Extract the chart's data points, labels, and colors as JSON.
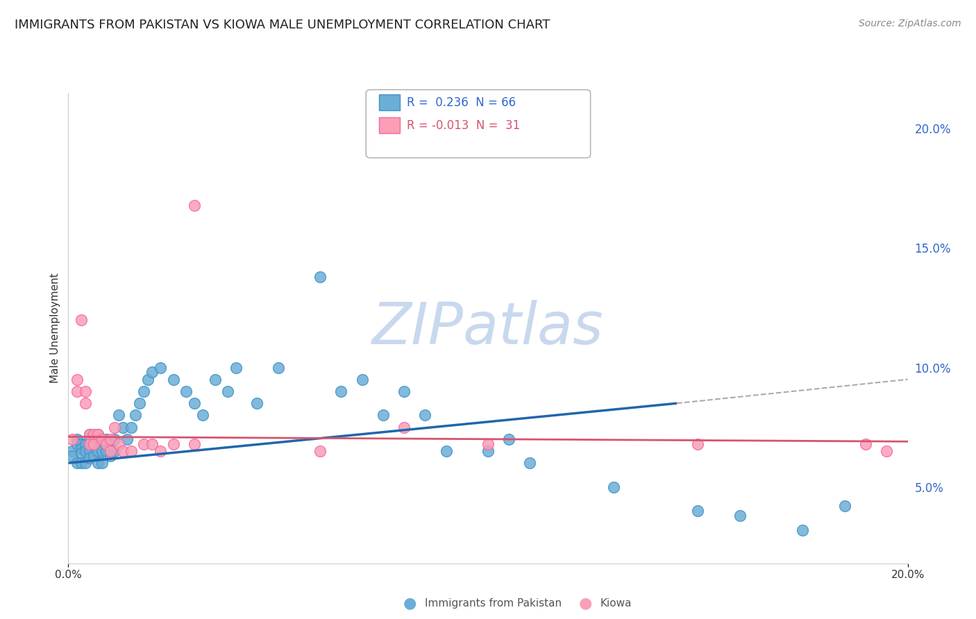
{
  "title": "IMMIGRANTS FROM PAKISTAN VS KIOWA MALE UNEMPLOYMENT CORRELATION CHART",
  "source_text": "Source: ZipAtlas.com",
  "ylabel": "Male Unemployment",
  "xlim": [
    0.0,
    0.2
  ],
  "ylim": [
    0.018,
    0.215
  ],
  "yticks_right": [
    0.05,
    0.1,
    0.15,
    0.2
  ],
  "ytick_labels_right": [
    "5.0%",
    "10.0%",
    "15.0%",
    "20.0%"
  ],
  "xticks": [
    0.0,
    0.2
  ],
  "xtick_labels": [
    "0.0%",
    "20.0%"
  ],
  "legend_label1": "R =  0.236  N = 66",
  "legend_label2": "R = -0.013  N =  31",
  "legend_color1": "#6baed6",
  "legend_color2": "#fa9fb5",
  "watermark_text": "ZIPatlas",
  "watermark_color": "#c8d8ee",
  "series1_color": "#6baed6",
  "series1_edge": "#4292c6",
  "series2_color": "#fa9fb5",
  "series2_edge": "#f768a1",
  "trend1_color": "#2166ac",
  "trend2_color": "#d6546e",
  "trend_dash_color": "#aaaaaa",
  "background_color": "#ffffff",
  "grid_color": "#e0e0e0",
  "bottom_legend_color1": "#6baed6",
  "bottom_legend_color2": "#fa9fb5",
  "bottom_legend_label1": "Immigrants from Pakistan",
  "bottom_legend_label2": "Kiowa",
  "series1_x": [
    0.001,
    0.001,
    0.002,
    0.002,
    0.002,
    0.003,
    0.003,
    0.003,
    0.003,
    0.004,
    0.004,
    0.004,
    0.005,
    0.005,
    0.005,
    0.005,
    0.006,
    0.006,
    0.006,
    0.007,
    0.007,
    0.007,
    0.007,
    0.008,
    0.008,
    0.008,
    0.009,
    0.009,
    0.01,
    0.01,
    0.011,
    0.011,
    0.012,
    0.013,
    0.014,
    0.015,
    0.016,
    0.017,
    0.018,
    0.019,
    0.02,
    0.022,
    0.025,
    0.028,
    0.03,
    0.032,
    0.035,
    0.038,
    0.04,
    0.045,
    0.05,
    0.06,
    0.065,
    0.07,
    0.075,
    0.08,
    0.085,
    0.09,
    0.1,
    0.105,
    0.11,
    0.13,
    0.15,
    0.16,
    0.175,
    0.185
  ],
  "series1_y": [
    0.065,
    0.063,
    0.07,
    0.068,
    0.06,
    0.068,
    0.066,
    0.064,
    0.06,
    0.068,
    0.065,
    0.06,
    0.072,
    0.07,
    0.065,
    0.062,
    0.07,
    0.068,
    0.063,
    0.072,
    0.07,
    0.065,
    0.06,
    0.068,
    0.065,
    0.06,
    0.07,
    0.065,
    0.068,
    0.063,
    0.07,
    0.065,
    0.08,
    0.075,
    0.07,
    0.075,
    0.08,
    0.085,
    0.09,
    0.095,
    0.098,
    0.1,
    0.095,
    0.09,
    0.085,
    0.08,
    0.095,
    0.09,
    0.1,
    0.085,
    0.1,
    0.138,
    0.09,
    0.095,
    0.08,
    0.09,
    0.08,
    0.065,
    0.065,
    0.07,
    0.06,
    0.05,
    0.04,
    0.038,
    0.032,
    0.042
  ],
  "series2_x": [
    0.001,
    0.002,
    0.002,
    0.003,
    0.004,
    0.004,
    0.005,
    0.005,
    0.006,
    0.006,
    0.007,
    0.008,
    0.009,
    0.01,
    0.01,
    0.011,
    0.012,
    0.013,
    0.015,
    0.018,
    0.02,
    0.022,
    0.025,
    0.03,
    0.06,
    0.08,
    0.1,
    0.15,
    0.19,
    0.195,
    0.03
  ],
  "series2_y": [
    0.07,
    0.09,
    0.095,
    0.12,
    0.09,
    0.085,
    0.072,
    0.068,
    0.072,
    0.068,
    0.072,
    0.07,
    0.068,
    0.07,
    0.065,
    0.075,
    0.068,
    0.065,
    0.065,
    0.068,
    0.068,
    0.065,
    0.068,
    0.068,
    0.065,
    0.075,
    0.068,
    0.068,
    0.068,
    0.065,
    0.168
  ],
  "trend1_x0": 0.0,
  "trend1_y0": 0.06,
  "trend1_x1": 0.145,
  "trend1_y1": 0.085,
  "trend_dash_x0": 0.145,
  "trend_dash_y0": 0.085,
  "trend_dash_x1": 0.2,
  "trend_dash_y1": 0.095,
  "trend2_x0": 0.0,
  "trend2_y0": 0.071,
  "trend2_x1": 0.2,
  "trend2_y1": 0.069,
  "title_fontsize": 13,
  "axis_fontsize": 11,
  "source_fontsize": 10,
  "legend_fontsize": 12
}
